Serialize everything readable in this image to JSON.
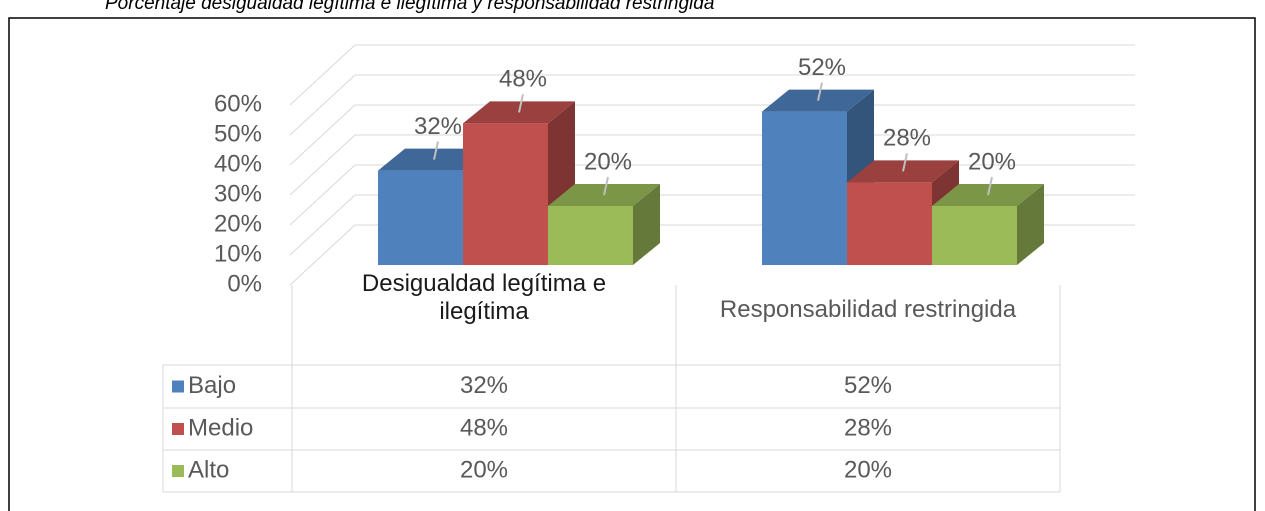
{
  "chart_data": {
    "type": "bar3d",
    "title": "Porcentaje desigualdad legítima e ilegítima y responsabilidad restringida",
    "categories": [
      "Desigualdad legítima e ilegítima",
      "Responsabilidad restringida"
    ],
    "series": [
      {
        "name": "Bajo",
        "color": "#4f81bd",
        "values": [
          32,
          52
        ],
        "value_labels": [
          "32%",
          "52%"
        ]
      },
      {
        "name": "Medio",
        "color": "#c0504d",
        "values": [
          48,
          28
        ],
        "value_labels": [
          "48%",
          "28%"
        ]
      },
      {
        "name": "Alto",
        "color": "#9bbb59",
        "values": [
          20,
          20
        ],
        "value_labels": [
          "20%",
          "20%"
        ]
      }
    ],
    "ylim": [
      0,
      60
    ],
    "yticks": [
      {
        "value": 0,
        "label": "0%"
      },
      {
        "value": 10,
        "label": "10%"
      },
      {
        "value": 20,
        "label": "20%"
      },
      {
        "value": 30,
        "label": "30%"
      },
      {
        "value": 40,
        "label": "40%"
      },
      {
        "value": 50,
        "label": "50%"
      },
      {
        "value": 60,
        "label": "60%"
      }
    ],
    "grid": true
  }
}
